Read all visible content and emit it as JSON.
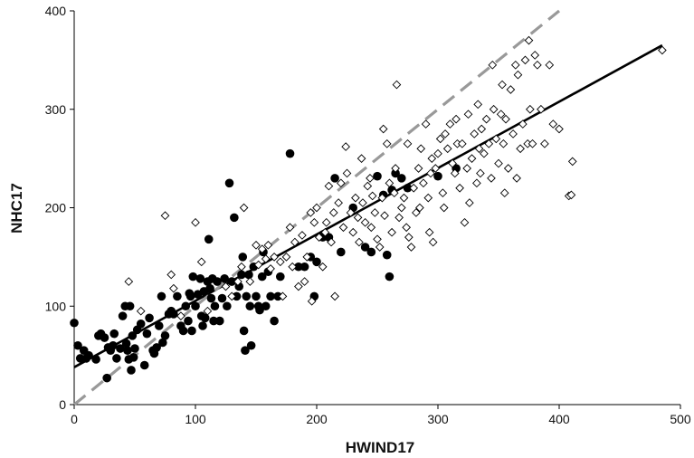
{
  "chart_data": {
    "type": "scatter",
    "xlabel": "HWIND17",
    "ylabel": "NHC17",
    "xlim": [
      0,
      500
    ],
    "ylim": [
      0,
      400
    ],
    "x_ticks": [
      0,
      100,
      200,
      300,
      400,
      500
    ],
    "y_ticks": [
      0,
      100,
      200,
      300,
      400
    ],
    "x_tick_labels": [
      "0",
      "100",
      "200",
      "300",
      "400",
      "500"
    ],
    "y_tick_labels": [
      "0",
      "100",
      "200",
      "300",
      "400"
    ],
    "grid": false,
    "legend": "none",
    "series": [
      {
        "marker": "filled-circle",
        "color": "#000000",
        "points": [
          [
            0,
            83
          ],
          [
            3,
            60
          ],
          [
            5,
            47
          ],
          [
            8,
            55
          ],
          [
            10,
            47
          ],
          [
            12,
            50
          ],
          [
            18,
            46
          ],
          [
            20,
            70
          ],
          [
            22,
            72
          ],
          [
            25,
            68
          ],
          [
            27,
            27
          ],
          [
            28,
            58
          ],
          [
            30,
            55
          ],
          [
            32,
            60
          ],
          [
            33,
            72
          ],
          [
            35,
            47
          ],
          [
            38,
            57
          ],
          [
            40,
            90
          ],
          [
            42,
            100
          ],
          [
            43,
            62
          ],
          [
            44,
            55
          ],
          [
            45,
            46
          ],
          [
            46,
            100
          ],
          [
            47,
            35
          ],
          [
            48,
            70
          ],
          [
            49,
            48
          ],
          [
            50,
            57
          ],
          [
            52,
            76
          ],
          [
            55,
            82
          ],
          [
            58,
            40
          ],
          [
            60,
            72
          ],
          [
            62,
            88
          ],
          [
            65,
            55
          ],
          [
            66,
            52
          ],
          [
            68,
            58
          ],
          [
            70,
            80
          ],
          [
            72,
            110
          ],
          [
            73,
            63
          ],
          [
            75,
            70
          ],
          [
            78,
            92
          ],
          [
            80,
            95
          ],
          [
            82,
            92
          ],
          [
            85,
            110
          ],
          [
            88,
            80
          ],
          [
            90,
            75
          ],
          [
            92,
            100
          ],
          [
            94,
            85
          ],
          [
            95,
            113
          ],
          [
            96,
            110
          ],
          [
            97,
            75
          ],
          [
            98,
            130
          ],
          [
            100,
            100
          ],
          [
            102,
            112
          ],
          [
            104,
            128
          ],
          [
            105,
            90
          ],
          [
            106,
            80
          ],
          [
            107,
            115
          ],
          [
            108,
            88
          ],
          [
            110,
            125
          ],
          [
            111,
            168
          ],
          [
            112,
            118
          ],
          [
            113,
            108
          ],
          [
            114,
            128
          ],
          [
            115,
            85
          ],
          [
            116,
            100
          ],
          [
            118,
            125
          ],
          [
            120,
            85
          ],
          [
            122,
            108
          ],
          [
            124,
            128
          ],
          [
            126,
            100
          ],
          [
            128,
            225
          ],
          [
            130,
            125
          ],
          [
            132,
            190
          ],
          [
            134,
            110
          ],
          [
            136,
            120
          ],
          [
            138,
            132
          ],
          [
            139,
            150
          ],
          [
            140,
            75
          ],
          [
            141,
            55
          ],
          [
            142,
            110
          ],
          [
            144,
            132
          ],
          [
            145,
            100
          ],
          [
            146,
            60
          ],
          [
            148,
            140
          ],
          [
            150,
            110
          ],
          [
            152,
            100
          ],
          [
            153,
            96
          ],
          [
            155,
            130
          ],
          [
            156,
            155
          ],
          [
            158,
            100
          ],
          [
            160,
            135
          ],
          [
            162,
            110
          ],
          [
            165,
            85
          ],
          [
            168,
            110
          ],
          [
            170,
            130
          ],
          [
            178,
            255
          ],
          [
            185,
            140
          ],
          [
            190,
            140
          ],
          [
            195,
            150
          ],
          [
            198,
            110
          ],
          [
            200,
            145
          ],
          [
            205,
            170
          ],
          [
            210,
            170
          ],
          [
            215,
            230
          ],
          [
            220,
            155
          ],
          [
            230,
            200
          ],
          [
            240,
            160
          ],
          [
            245,
            155
          ],
          [
            250,
            232
          ],
          [
            255,
            213
          ],
          [
            258,
            152
          ],
          [
            260,
            130
          ],
          [
            262,
            218
          ],
          [
            265,
            235
          ],
          [
            270,
            230
          ],
          [
            275,
            220
          ],
          [
            300,
            232
          ],
          [
            315,
            240
          ]
        ]
      },
      {
        "marker": "open-diamond",
        "color": "#000000",
        "points": [
          [
            45,
            125
          ],
          [
            55,
            95
          ],
          [
            75,
            192
          ],
          [
            80,
            132
          ],
          [
            82,
            118
          ],
          [
            88,
            90
          ],
          [
            100,
            185
          ],
          [
            105,
            145
          ],
          [
            110,
            95
          ],
          [
            125,
            120
          ],
          [
            130,
            110
          ],
          [
            135,
            125
          ],
          [
            138,
            140
          ],
          [
            140,
            200
          ],
          [
            145,
            125
          ],
          [
            150,
            162
          ],
          [
            152,
            142
          ],
          [
            155,
            158
          ],
          [
            158,
            148
          ],
          [
            160,
            162
          ],
          [
            162,
            138
          ],
          [
            165,
            150
          ],
          [
            170,
            145
          ],
          [
            172,
            110
          ],
          [
            175,
            150
          ],
          [
            178,
            180
          ],
          [
            180,
            140
          ],
          [
            182,
            165
          ],
          [
            185,
            120
          ],
          [
            188,
            172
          ],
          [
            190,
            125
          ],
          [
            192,
            150
          ],
          [
            195,
            195
          ],
          [
            196,
            105
          ],
          [
            198,
            185
          ],
          [
            200,
            200
          ],
          [
            202,
            170
          ],
          [
            205,
            140
          ],
          [
            207,
            175
          ],
          [
            208,
            185
          ],
          [
            210,
            222
          ],
          [
            212,
            165
          ],
          [
            214,
            195
          ],
          [
            215,
            110
          ],
          [
            218,
            205
          ],
          [
            220,
            225
          ],
          [
            222,
            180
          ],
          [
            224,
            262
          ],
          [
            225,
            235
          ],
          [
            228,
            195
          ],
          [
            230,
            175
          ],
          [
            232,
            210
          ],
          [
            234,
            190
          ],
          [
            235,
            165
          ],
          [
            237,
            250
          ],
          [
            238,
            205
          ],
          [
            240,
            185
          ],
          [
            242,
            222
          ],
          [
            244,
            230
          ],
          [
            245,
            180
          ],
          [
            246,
            212
          ],
          [
            248,
            195
          ],
          [
            250,
            168
          ],
          [
            252,
            160
          ],
          [
            254,
            210
          ],
          [
            255,
            280
          ],
          [
            256,
            192
          ],
          [
            258,
            265
          ],
          [
            260,
            225
          ],
          [
            262,
            175
          ],
          [
            264,
            215
          ],
          [
            265,
            240
          ],
          [
            266,
            325
          ],
          [
            268,
            190
          ],
          [
            270,
            200
          ],
          [
            272,
            210
          ],
          [
            274,
            180
          ],
          [
            275,
            265
          ],
          [
            276,
            170
          ],
          [
            278,
            160
          ],
          [
            280,
            220
          ],
          [
            282,
            195
          ],
          [
            284,
            240
          ],
          [
            285,
            200
          ],
          [
            286,
            260
          ],
          [
            288,
            225
          ],
          [
            290,
            285
          ],
          [
            292,
            210
          ],
          [
            293,
            175
          ],
          [
            294,
            235
          ],
          [
            295,
            250
          ],
          [
            296,
            165
          ],
          [
            298,
            240
          ],
          [
            300,
            255
          ],
          [
            302,
            270
          ],
          [
            304,
            215
          ],
          [
            305,
            200
          ],
          [
            306,
            275
          ],
          [
            308,
            260
          ],
          [
            310,
            285
          ],
          [
            312,
            245
          ],
          [
            314,
            235
          ],
          [
            315,
            290
          ],
          [
            316,
            265
          ],
          [
            318,
            220
          ],
          [
            320,
            265
          ],
          [
            322,
            185
          ],
          [
            324,
            240
          ],
          [
            325,
            295
          ],
          [
            326,
            205
          ],
          [
            328,
            250
          ],
          [
            330,
            275
          ],
          [
            332,
            225
          ],
          [
            333,
            305
          ],
          [
            334,
            260
          ],
          [
            335,
            235
          ],
          [
            336,
            280
          ],
          [
            338,
            255
          ],
          [
            340,
            290
          ],
          [
            342,
            265
          ],
          [
            344,
            230
          ],
          [
            345,
            345
          ],
          [
            346,
            300
          ],
          [
            348,
            270
          ],
          [
            350,
            245
          ],
          [
            352,
            295
          ],
          [
            353,
            325
          ],
          [
            354,
            265
          ],
          [
            355,
            215
          ],
          [
            356,
            290
          ],
          [
            358,
            240
          ],
          [
            360,
            320
          ],
          [
            362,
            275
          ],
          [
            364,
            345
          ],
          [
            365,
            230
          ],
          [
            366,
            335
          ],
          [
            368,
            260
          ],
          [
            370,
            285
          ],
          [
            372,
            350
          ],
          [
            374,
            265
          ],
          [
            375,
            370
          ],
          [
            376,
            300
          ],
          [
            378,
            265
          ],
          [
            380,
            355
          ],
          [
            382,
            345
          ],
          [
            385,
            300
          ],
          [
            388,
            265
          ],
          [
            392,
            345
          ],
          [
            395,
            285
          ],
          [
            400,
            280
          ],
          [
            408,
            212
          ],
          [
            410,
            213
          ],
          [
            411,
            247
          ],
          [
            485,
            360
          ]
        ]
      }
    ],
    "lines": [
      {
        "kind": "fit",
        "style": "solid",
        "color": "#000000",
        "x": [
          0,
          485
        ],
        "y": [
          38,
          365
        ]
      },
      {
        "kind": "identity",
        "style": "dashed",
        "color": "#999999",
        "x": [
          0,
          400
        ],
        "y": [
          0,
          400
        ]
      }
    ]
  }
}
